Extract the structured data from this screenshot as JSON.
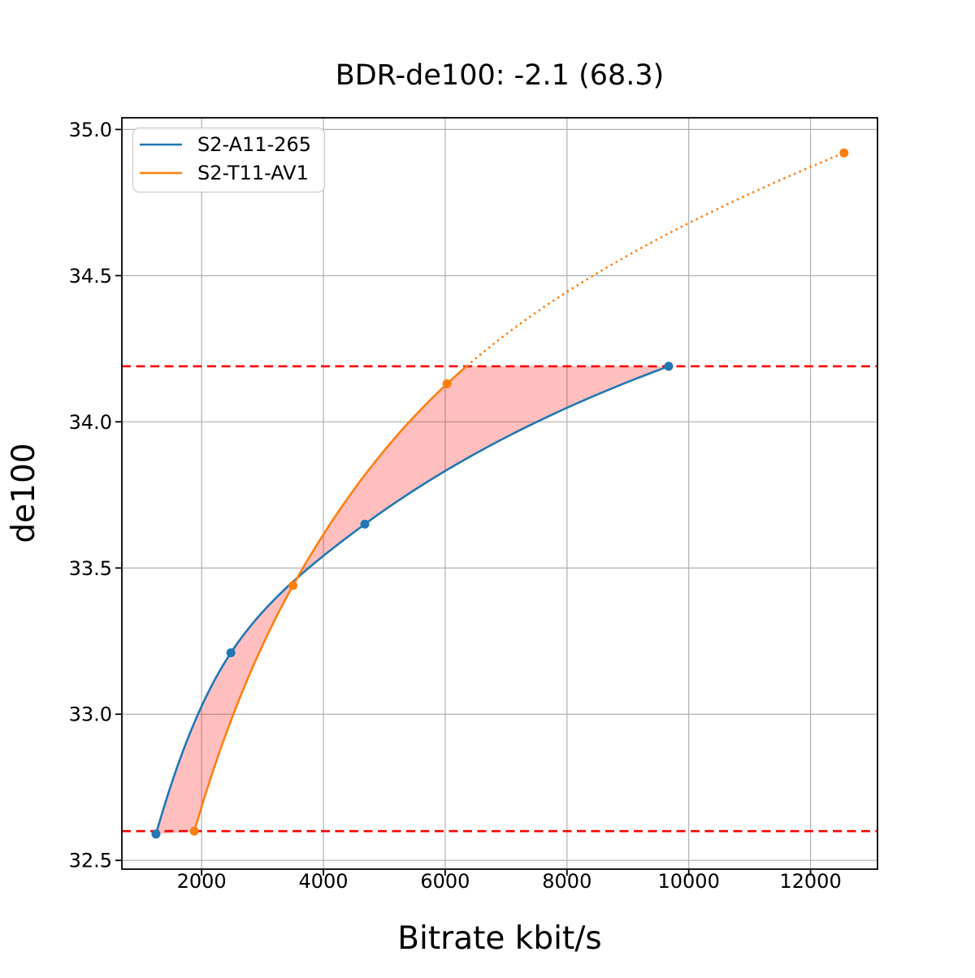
{
  "chart_data": {
    "type": "line",
    "title": "BDR-de100: -2.1 (68.3)",
    "xlabel": "Bitrate kbit/s",
    "ylabel": "de100",
    "xlim": [
      690,
      13100
    ],
    "ylim": [
      32.47,
      35.04
    ],
    "xticks": [
      2000,
      4000,
      6000,
      8000,
      10000,
      12000
    ],
    "yticks": [
      32.5,
      33.0,
      33.5,
      34.0,
      34.5,
      35.0
    ],
    "grid": true,
    "grid_color": "#b0b0b0",
    "background": "#ffffff",
    "legend": {
      "position": "upper-left",
      "entries": [
        "S2-A11-265",
        "S2-T11-AV1"
      ]
    },
    "series": [
      {
        "name": "S2-A11-265",
        "color": "#1f77b4",
        "marker": "circle",
        "x": [
          1250,
          2480,
          4680,
          9670
        ],
        "y": [
          32.59,
          33.21,
          33.65,
          34.19
        ],
        "line_style": "solid"
      },
      {
        "name": "S2-T11-AV1",
        "color": "#ff7f0e",
        "marker": "circle",
        "x": [
          1880,
          3500,
          6030,
          12550
        ],
        "y": [
          32.6,
          33.44,
          34.13,
          34.92
        ],
        "line_style": "solid-then-dotted",
        "dotted_above_y": 34.19
      }
    ],
    "hlines": [
      {
        "y": 34.19,
        "color": "#ff0000",
        "style": "dashed"
      },
      {
        "y": 32.6,
        "color": "#ff0000",
        "style": "dashed"
      }
    ],
    "fill_between": {
      "between": [
        "S2-A11-265",
        "S2-T11-AV1"
      ],
      "color": "#ff0000",
      "opacity": 0.25,
      "lower_bound_y": 32.6,
      "upper_bound_y": 34.19
    }
  }
}
